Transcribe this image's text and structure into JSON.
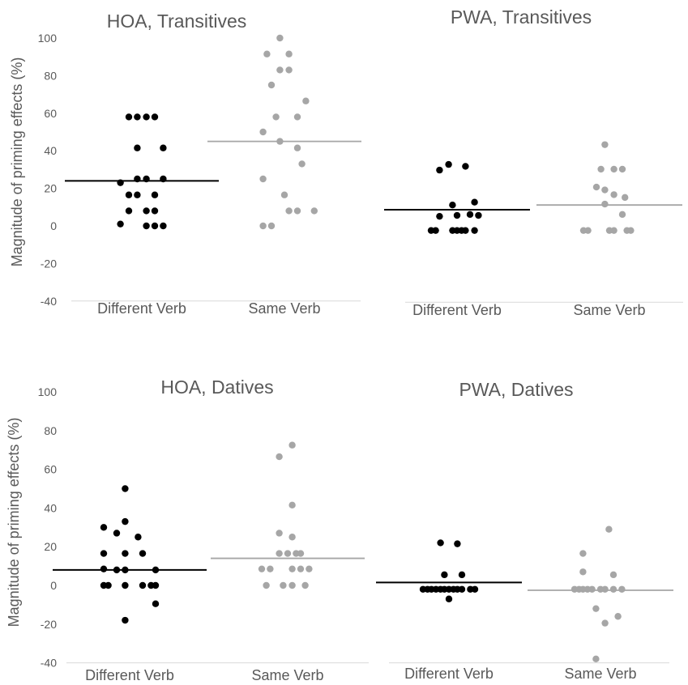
{
  "chart_data": [
    {
      "type": "scatter",
      "title": "HOA, Transitives",
      "ylabel": "Magnitude of priming effects (%)",
      "ylim": [
        -40,
        100
      ],
      "yticks": [
        -40,
        -20,
        0,
        20,
        40,
        60,
        80,
        100
      ],
      "categories": [
        "Different Verb",
        "Same Verb"
      ],
      "series": [
        {
          "category": "Different Verb",
          "color": "#000000",
          "mean": 24,
          "points": [
            {
              "x": -0.33,
              "y": 23
            },
            {
              "x": -0.33,
              "y": 1
            },
            {
              "x": -0.2,
              "y": 58
            },
            {
              "x": -0.2,
              "y": 16.5
            },
            {
              "x": -0.2,
              "y": 8
            },
            {
              "x": -0.07,
              "y": 58
            },
            {
              "x": -0.07,
              "y": 41.5
            },
            {
              "x": -0.07,
              "y": 25
            },
            {
              "x": -0.07,
              "y": 16.5
            },
            {
              "x": 0.07,
              "y": 58
            },
            {
              "x": 0.07,
              "y": 25
            },
            {
              "x": 0.07,
              "y": 8
            },
            {
              "x": 0.07,
              "y": 0
            },
            {
              "x": 0.2,
              "y": 58
            },
            {
              "x": 0.2,
              "y": 16.5
            },
            {
              "x": 0.2,
              "y": 8
            },
            {
              "x": 0.2,
              "y": 0
            },
            {
              "x": 0.33,
              "y": 41.5
            },
            {
              "x": 0.33,
              "y": 25
            },
            {
              "x": 0.33,
              "y": 0
            }
          ]
        },
        {
          "category": "Same Verb",
          "color": "#a6a6a6",
          "mean": 45,
          "points": [
            {
              "x": -0.33,
              "y": 50
            },
            {
              "x": -0.33,
              "y": 25
            },
            {
              "x": -0.33,
              "y": 0
            },
            {
              "x": -0.27,
              "y": 91.5
            },
            {
              "x": -0.2,
              "y": 75
            },
            {
              "x": -0.2,
              "y": 0
            },
            {
              "x": -0.13,
              "y": 58
            },
            {
              "x": -0.07,
              "y": 100
            },
            {
              "x": -0.07,
              "y": 83
            },
            {
              "x": -0.07,
              "y": 45
            },
            {
              "x": 0.0,
              "y": 16.5
            },
            {
              "x": 0.07,
              "y": 91.5
            },
            {
              "x": 0.07,
              "y": 83
            },
            {
              "x": 0.07,
              "y": 8
            },
            {
              "x": 0.2,
              "y": 58
            },
            {
              "x": 0.2,
              "y": 41.5
            },
            {
              "x": 0.2,
              "y": 8
            },
            {
              "x": 0.27,
              "y": 33
            },
            {
              "x": 0.33,
              "y": 66.5
            },
            {
              "x": 0.46,
              "y": 8
            }
          ]
        }
      ]
    },
    {
      "type": "scatter",
      "title": "PWA, Transitives",
      "ylim": [
        -40,
        100
      ],
      "categories": [
        "Different Verb",
        "Same Verb"
      ],
      "series": [
        {
          "category": "Different Verb",
          "color": "#000000",
          "mean": 9,
          "points": [
            {
              "x": -0.4,
              "y": -2
            },
            {
              "x": -0.33,
              "y": -2
            },
            {
              "x": -0.27,
              "y": 30
            },
            {
              "x": -0.27,
              "y": 5.5
            },
            {
              "x": -0.13,
              "y": 33
            },
            {
              "x": -0.07,
              "y": 11.5
            },
            {
              "x": -0.07,
              "y": -2
            },
            {
              "x": 0.0,
              "y": -2
            },
            {
              "x": 0.0,
              "y": 6
            },
            {
              "x": 0.07,
              "y": -2
            },
            {
              "x": 0.13,
              "y": 32
            },
            {
              "x": 0.13,
              "y": -2
            },
            {
              "x": 0.2,
              "y": 6.5
            },
            {
              "x": 0.27,
              "y": 13
            },
            {
              "x": 0.27,
              "y": -2
            },
            {
              "x": 0.33,
              "y": 6
            }
          ]
        },
        {
          "category": "Same Verb",
          "color": "#a6a6a6",
          "mean": 11.5,
          "points": [
            {
              "x": -0.4,
              "y": -2
            },
            {
              "x": -0.33,
              "y": -2
            },
            {
              "x": -0.2,
              "y": 21
            },
            {
              "x": -0.13,
              "y": 30.5
            },
            {
              "x": -0.07,
              "y": 43.5
            },
            {
              "x": -0.07,
              "y": 19.5
            },
            {
              "x": -0.07,
              "y": 12
            },
            {
              "x": 0.0,
              "y": -2
            },
            {
              "x": 0.07,
              "y": 30.5
            },
            {
              "x": 0.07,
              "y": 17
            },
            {
              "x": 0.07,
              "y": -2
            },
            {
              "x": 0.2,
              "y": 30.5
            },
            {
              "x": 0.2,
              "y": 6.5
            },
            {
              "x": 0.24,
              "y": 15.5
            },
            {
              "x": 0.27,
              "y": -2
            },
            {
              "x": 0.33,
              "y": -2
            }
          ]
        }
      ]
    },
    {
      "type": "scatter",
      "title": "HOA, Datives",
      "ylabel": "Magnitude of  priming effects (%)",
      "ylim": [
        -40,
        100
      ],
      "yticks": [
        -40,
        -20,
        0,
        20,
        40,
        60,
        80,
        100
      ],
      "categories": [
        "Different Verb",
        "Same Verb"
      ],
      "series": [
        {
          "category": "Different Verb",
          "color": "#000000",
          "mean": 8,
          "points": [
            {
              "x": -0.4,
              "y": 30
            },
            {
              "x": -0.4,
              "y": 16.5
            },
            {
              "x": -0.4,
              "y": 8.5
            },
            {
              "x": -0.4,
              "y": 0
            },
            {
              "x": -0.33,
              "y": 0
            },
            {
              "x": -0.2,
              "y": 27
            },
            {
              "x": -0.2,
              "y": 8
            },
            {
              "x": -0.07,
              "y": 50
            },
            {
              "x": -0.07,
              "y": 33
            },
            {
              "x": -0.07,
              "y": 16.5
            },
            {
              "x": -0.07,
              "y": 8
            },
            {
              "x": -0.07,
              "y": 0
            },
            {
              "x": -0.07,
              "y": -18
            },
            {
              "x": 0.13,
              "y": 25
            },
            {
              "x": 0.2,
              "y": 16.5
            },
            {
              "x": 0.2,
              "y": 0
            },
            {
              "x": 0.33,
              "y": 0
            },
            {
              "x": 0.4,
              "y": 0
            },
            {
              "x": 0.4,
              "y": 8
            },
            {
              "x": 0.4,
              "y": -9.5
            }
          ]
        },
        {
          "category": "Same Verb",
          "color": "#a6a6a6",
          "mean": 14,
          "points": [
            {
              "x": -0.4,
              "y": 8.5
            },
            {
              "x": -0.33,
              "y": 0
            },
            {
              "x": -0.27,
              "y": 8.5
            },
            {
              "x": -0.13,
              "y": 66.5
            },
            {
              "x": -0.13,
              "y": 27
            },
            {
              "x": -0.13,
              "y": 16.5
            },
            {
              "x": -0.07,
              "y": 0
            },
            {
              "x": 0.0,
              "y": 16.5
            },
            {
              "x": 0.07,
              "y": 72.5
            },
            {
              "x": 0.07,
              "y": 41.5
            },
            {
              "x": 0.07,
              "y": 25
            },
            {
              "x": 0.07,
              "y": 8.5
            },
            {
              "x": 0.07,
              "y": 0
            },
            {
              "x": 0.13,
              "y": 16.5
            },
            {
              "x": 0.2,
              "y": 16.5
            },
            {
              "x": 0.2,
              "y": 8.5
            },
            {
              "x": 0.27,
              "y": 0
            },
            {
              "x": 0.33,
              "y": 8.5
            }
          ]
        }
      ]
    },
    {
      "type": "scatter",
      "title": "PWA, Datives",
      "ylim": [
        -40,
        100
      ],
      "categories": [
        "Different Verb",
        "Same Verb"
      ],
      "series": [
        {
          "category": "Different Verb",
          "color": "#000000",
          "mean": 1.5,
          "points": [
            {
              "x": -0.4,
              "y": -2
            },
            {
              "x": -0.33,
              "y": -2
            },
            {
              "x": -0.27,
              "y": -2
            },
            {
              "x": -0.2,
              "y": -2
            },
            {
              "x": -0.13,
              "y": -2
            },
            {
              "x": -0.13,
              "y": 22
            },
            {
              "x": -0.07,
              "y": -2
            },
            {
              "x": -0.07,
              "y": 5.5
            },
            {
              "x": 0.0,
              "y": -2
            },
            {
              "x": 0.0,
              "y": -7
            },
            {
              "x": 0.07,
              "y": -2
            },
            {
              "x": 0.13,
              "y": 21.5
            },
            {
              "x": 0.13,
              "y": -2
            },
            {
              "x": 0.2,
              "y": 5.5
            },
            {
              "x": 0.2,
              "y": -2
            },
            {
              "x": 0.33,
              "y": -2
            },
            {
              "x": 0.4,
              "y": -2
            }
          ]
        },
        {
          "category": "Same Verb",
          "color": "#a6a6a6",
          "mean": -2.5,
          "points": [
            {
              "x": -0.4,
              "y": -2
            },
            {
              "x": -0.33,
              "y": -2
            },
            {
              "x": -0.27,
              "y": 16.5
            },
            {
              "x": -0.27,
              "y": 7
            },
            {
              "x": -0.27,
              "y": -2
            },
            {
              "x": -0.2,
              "y": -2
            },
            {
              "x": -0.13,
              "y": -2
            },
            {
              "x": -0.07,
              "y": -12
            },
            {
              "x": 0.0,
              "y": -2
            },
            {
              "x": 0.07,
              "y": -2
            },
            {
              "x": 0.07,
              "y": -19.5
            },
            {
              "x": 0.13,
              "y": 29
            },
            {
              "x": 0.2,
              "y": 5.5
            },
            {
              "x": 0.2,
              "y": -2
            },
            {
              "x": 0.27,
              "y": -16
            },
            {
              "x": 0.33,
              "y": -2
            },
            {
              "x": -0.07,
              "y": -38
            }
          ]
        }
      ]
    }
  ]
}
